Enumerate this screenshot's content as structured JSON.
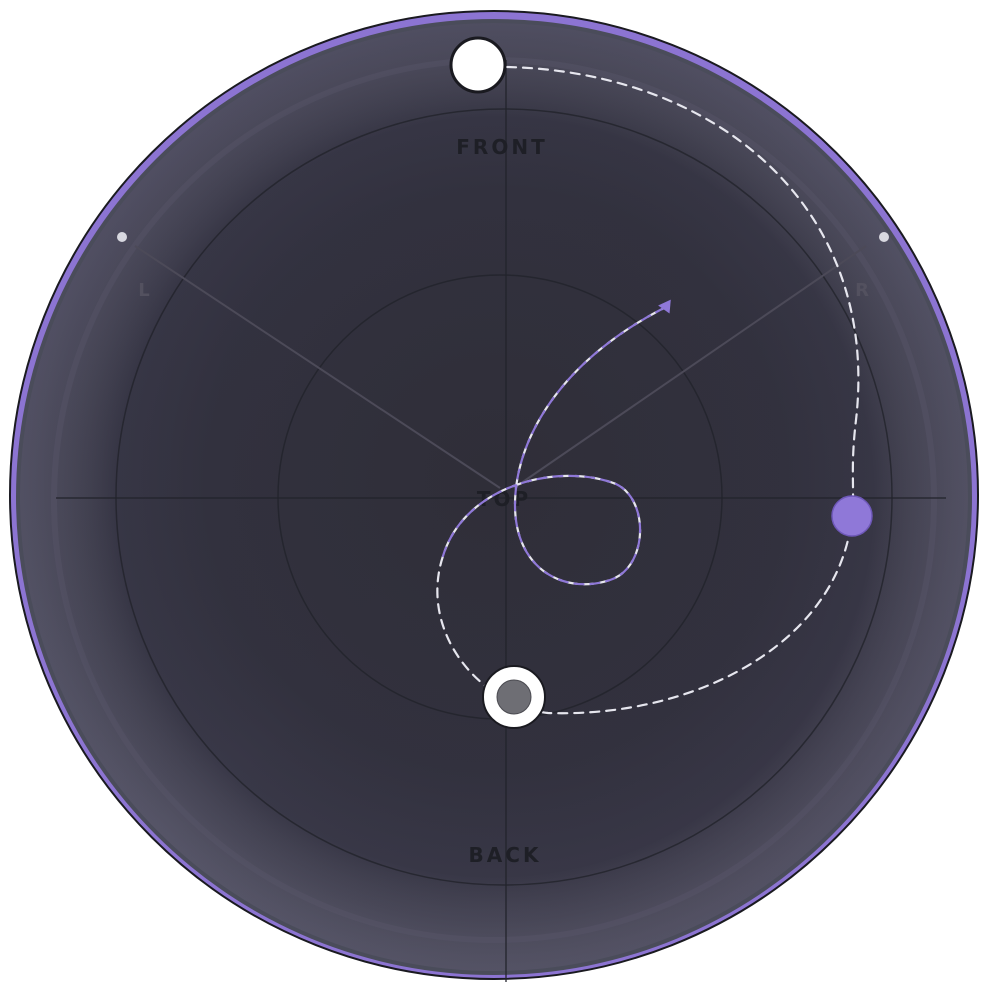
{
  "panner": {
    "labels": {
      "front": "FRONT",
      "back": "BACK",
      "left": "L",
      "right": "R",
      "top": "TOP"
    },
    "colors": {
      "accent": "#8f78d8",
      "ring": "#8c74d2",
      "background": "#2d2f3a",
      "path_white": "#e8e8ee",
      "label": "#1e1f26"
    }
  }
}
